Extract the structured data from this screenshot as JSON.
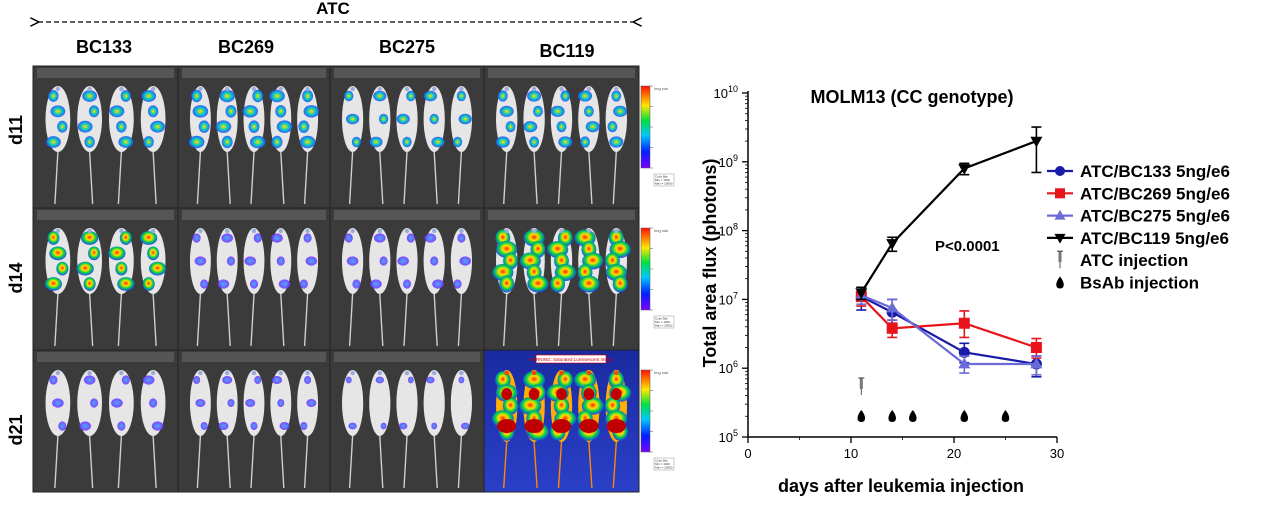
{
  "left_panel": {
    "header": "ATC",
    "columns": [
      "BC133",
      "BC269",
      "BC275",
      "BC119"
    ],
    "rows": [
      "d11",
      "d14",
      "d21"
    ],
    "tiles": [
      {
        "mice": 4,
        "intensity": 0.55
      },
      {
        "mice": 5,
        "intensity": 0.6
      },
      {
        "mice": 5,
        "intensity": 0.45
      },
      {
        "mice": 5,
        "intensity": 0.5
      },
      {
        "mice": 4,
        "intensity": 0.7
      },
      {
        "mice": 5,
        "intensity": 0.35
      },
      {
        "mice": 5,
        "intensity": 0.35
      },
      {
        "mice": 5,
        "intensity": 0.95
      },
      {
        "mice": 4,
        "intensity": 0.35
      },
      {
        "mice": 5,
        "intensity": 0.25
      },
      {
        "mice": 5,
        "intensity": 0.15
      },
      {
        "mice": 5,
        "intensity": 1.0,
        "saturated": true
      }
    ],
    "saturation_warning": "WARNING: Saturated Luminescent Image",
    "colorbar_label": "Img sub\nRat-Reject\nSeq Color",
    "colorbar_range_lines": [
      "Color Bar",
      "Min = 1000",
      "Max = 10000"
    ]
  },
  "colors": {
    "BC133": "#1a1aa8",
    "BC269": "#e8141c",
    "BC275": "#6b6bd8",
    "BC119": "#000000",
    "background_dark": "#3a3a3a"
  },
  "chart_data": {
    "type": "line",
    "title": "MOLM13 (CC genotype)",
    "xlabel": "days after leukemia injection",
    "ylabel": "Total area flux (photons)",
    "xlim": [
      0,
      30
    ],
    "xticks": [
      "0",
      "10",
      "20",
      "30"
    ],
    "ylim_log10": [
      5,
      10
    ],
    "yscale": "log",
    "yticks": [
      {
        "base": "10",
        "exp": "5"
      },
      {
        "base": "10",
        "exp": "6"
      },
      {
        "base": "10",
        "exp": "7"
      },
      {
        "base": "10",
        "exp": "8"
      },
      {
        "base": "10",
        "exp": "9"
      },
      {
        "base": "10",
        "exp": "10"
      }
    ],
    "annotation": "P<0.0001",
    "series": [
      {
        "name": "ATC/BC133 5ng/e6",
        "color": "#1a1aa8",
        "marker": "circle",
        "x": [
          11,
          14,
          21,
          28
        ],
        "y": [
          11000000.0,
          6500000.0,
          1700000.0,
          1150000.0
        ],
        "err": [
          [
            7000000.0,
            15000000.0
          ],
          [
            4500000.0,
            10000000.0
          ],
          [
            1200000.0,
            2300000.0
          ],
          [
            750000.0,
            1500000.0
          ]
        ]
      },
      {
        "name": "ATC/BC269 5ng/e6",
        "color": "#e8141c",
        "marker": "square",
        "x": [
          11,
          14,
          21,
          28
        ],
        "y": [
          11000000.0,
          3800000.0,
          4500000.0,
          2000000.0
        ],
        "err": [
          [
            8000000.0,
            14000000.0
          ],
          [
            2800000.0,
            5000000.0
          ],
          [
            2800000.0,
            6800000.0
          ],
          [
            1400000.0,
            2700000.0
          ]
        ]
      },
      {
        "name": "ATC/BC275 5ng/e6",
        "color": "#6b6bd8",
        "marker": "triangle-up",
        "x": [
          11,
          14,
          21,
          28
        ],
        "y": [
          11500000.0,
          7500000.0,
          1150000.0,
          1150000.0
        ],
        "err": [
          [
            8500000.0,
            14000000.0
          ],
          [
            5000000.0,
            10000000.0
          ],
          [
            850000.0,
            1500000.0
          ],
          [
            800000.0,
            1500000.0
          ]
        ]
      },
      {
        "name": "ATC/BC119 5ng/e6",
        "color": "#000000",
        "marker": "triangle-down",
        "x": [
          11,
          14,
          21,
          28
        ],
        "y": [
          12500000.0,
          65000000.0,
          800000000.0,
          2000000000.0
        ],
        "err": [
          [
            10000000.0,
            15000000.0
          ],
          [
            50000000.0,
            80000000.0
          ],
          [
            650000000.0,
            950000000.0
          ],
          [
            700000000.0,
            3200000000.0
          ]
        ]
      }
    ],
    "legend_extra": [
      {
        "label": "ATC injection",
        "icon": "syringe-icon"
      },
      {
        "label": "BsAb injection",
        "icon": "droplet-icon"
      }
    ],
    "atc_injection_days": [
      11
    ],
    "bsab_injection_days": [
      11,
      14,
      16,
      21,
      25
    ],
    "legend_position": "right"
  }
}
